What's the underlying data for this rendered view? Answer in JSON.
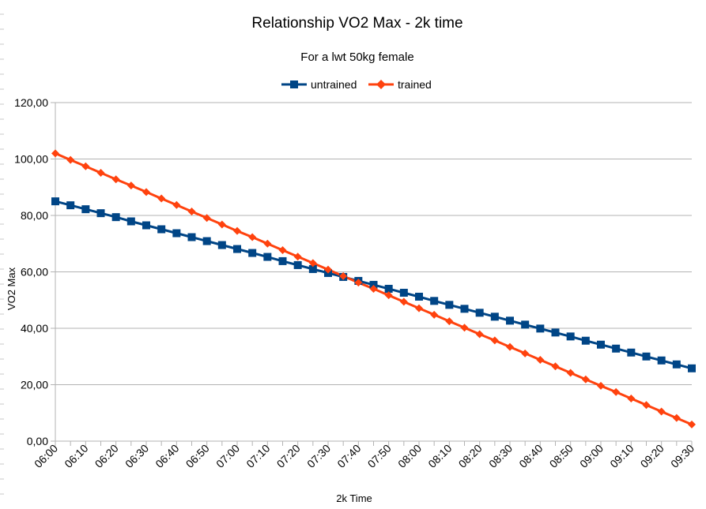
{
  "chart_data": {
    "type": "line",
    "title": "Relationship VO2 Max - 2k time",
    "subtitle": "For a lwt 50kg female",
    "xlabel": "2k Time",
    "ylabel": "VO2 Max",
    "ylim": [
      0,
      120
    ],
    "y_ticks": [
      "0,00",
      "20,00",
      "40,00",
      "60,00",
      "80,00",
      "100,00",
      "120,00"
    ],
    "x_tick_labels": [
      "06:00",
      "06:10",
      "06:20",
      "06:30",
      "06:40",
      "06:50",
      "07:00",
      "07:10",
      "07:20",
      "07:30",
      "07:40",
      "07:50",
      "08:00",
      "08:10",
      "08:20",
      "08:30",
      "08:40",
      "08:50",
      "09:00",
      "09:10",
      "09:20",
      "09:30"
    ],
    "x": [
      "06:00",
      "06:05",
      "06:10",
      "06:15",
      "06:20",
      "06:25",
      "06:30",
      "06:35",
      "06:40",
      "06:45",
      "06:50",
      "06:55",
      "07:00",
      "07:05",
      "07:10",
      "07:15",
      "07:20",
      "07:25",
      "07:30",
      "07:35",
      "07:40",
      "07:45",
      "07:50",
      "07:55",
      "08:00",
      "08:05",
      "08:10",
      "08:15",
      "08:20",
      "08:25",
      "08:30",
      "08:35",
      "08:40",
      "08:45",
      "08:50",
      "08:55",
      "09:00",
      "09:05",
      "09:10",
      "09:15",
      "09:20",
      "09:25",
      "09:30"
    ],
    "grid": true,
    "legend": "top",
    "series": [
      {
        "name": "untrained",
        "color": "#004586",
        "marker": "square",
        "values": [
          85.0,
          83.6,
          82.2,
          80.8,
          79.4,
          77.9,
          76.5,
          75.1,
          73.7,
          72.3,
          70.9,
          69.5,
          68.1,
          66.7,
          65.3,
          63.8,
          62.4,
          61.0,
          59.6,
          58.2,
          56.8,
          55.4,
          54.0,
          52.6,
          51.2,
          49.7,
          48.3,
          46.9,
          45.5,
          44.1,
          42.7,
          41.3,
          39.9,
          38.5,
          37.1,
          35.6,
          34.2,
          32.8,
          31.4,
          30.0,
          28.6,
          27.2,
          25.8
        ]
      },
      {
        "name": "trained",
        "color": "#ff420e",
        "marker": "diamond",
        "values": [
          102.0,
          99.7,
          97.4,
          95.1,
          92.8,
          90.6,
          88.3,
          86.0,
          83.7,
          81.4,
          79.1,
          76.8,
          74.5,
          72.3,
          70.0,
          67.7,
          65.4,
          63.1,
          60.8,
          58.5,
          56.2,
          54.0,
          51.7,
          49.4,
          47.1,
          44.8,
          42.5,
          40.2,
          37.9,
          35.7,
          33.4,
          31.1,
          28.8,
          26.5,
          24.2,
          21.9,
          19.6,
          17.4,
          15.1,
          12.8,
          10.5,
          8.2,
          5.9
        ]
      }
    ]
  }
}
